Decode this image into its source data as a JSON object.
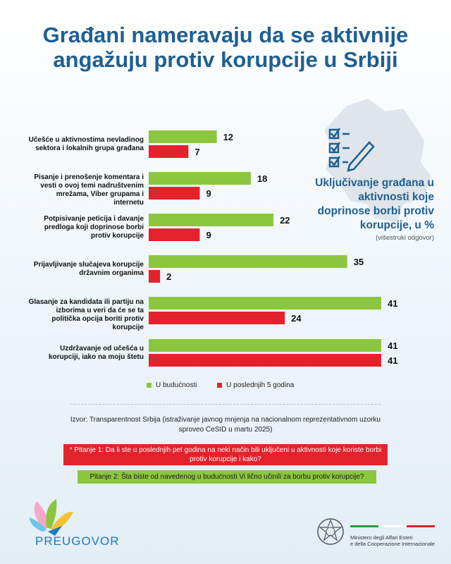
{
  "title": "Građani nameravaju da se aktivnije angažuju protiv korupcije u Srbiji",
  "side_panel": {
    "title": "Uključivanje građana u aktivnosti koje doprinose borbi protiv korupcije, u %",
    "note": "(višestruki odgovor)",
    "icon": "checklist-pen-icon"
  },
  "colors": {
    "future": "#8cc63f",
    "past": "#e4222c",
    "title": "#1f5f91"
  },
  "chart_data": {
    "type": "bar",
    "orientation": "horizontal",
    "categories": [
      "Učešće u aktivnostima nevladinog sektora i lokalnih grupa građana",
      "Pisanje i prenošenje komentara i vesti o ovoj temi nadruštvenim mrežama, Viber grupama i internetu",
      "Potpisivanje peticija i davanje predloga koji doprinose borbi protiv korupcije",
      "Prijavljivanje slučajeva korupcije državnim organima",
      "Glasanje za kandidata ili partiju na izborima u veri da će se ta politička opcija boriti protiv korupcije",
      "Uzdržavanje od učešća u korupciji, iako na moju štetu"
    ],
    "series": [
      {
        "name": "U budućnosti",
        "values": [
          12,
          18,
          22,
          35,
          41,
          41
        ]
      },
      {
        "name": "U poslednjih 5 godina",
        "values": [
          7,
          9,
          9,
          2,
          24,
          41
        ]
      }
    ],
    "title": "Uključivanje građana u aktivnosti koje doprinose borbi protiv korupcije, u %",
    "xlabel": "",
    "ylabel": "",
    "xlim": [
      0,
      41
    ],
    "grid": false,
    "legend": "bottom"
  },
  "source": "Izvor: Transparentnost Srbija (istraživanje javnog mnjenja na nacionalnom reprezentativnom uzorku sproveo CeSID u martu 2025)",
  "question1": "* Pitanje 1: Da li ste u poslednjih pet godina na neki način bili uključeni u aktivnosti koje koriste borbi protiv korupcije i kako?",
  "question2": "Pitanje 2: Šta biste od navedenog u budućnosti Vi lično učinili za borbu protiv korupcije?",
  "logos": {
    "left_text": "PREUGOVOR",
    "ministry_line1": "Ministero degli Affari Esteri",
    "ministry_line2": "e della Cooperazione Internazionale"
  }
}
